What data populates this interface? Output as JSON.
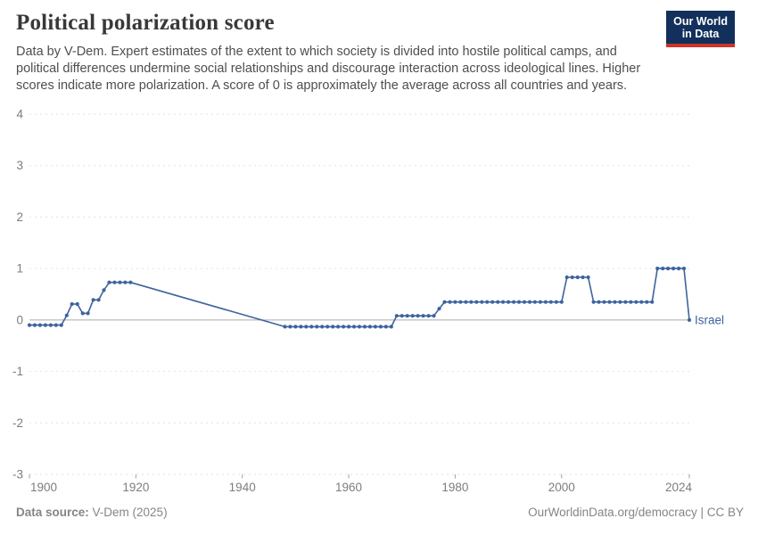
{
  "header": {
    "title": "Political polarization score",
    "subtitle_lines": [
      "Data by V-Dem. Expert estimates of the extent to which society is divided into hostile political camps, and",
      "political differences undermine social relationships and discourage interaction across ideological lines. Higher",
      "scores indicate more polarization. A score of 0 is approximately the average across all countries and years."
    ],
    "logo": {
      "line1": "Our World",
      "line2": "in Data",
      "bg_color": "#12305b",
      "accent_color": "#cb3529"
    }
  },
  "chart_data": {
    "type": "line",
    "title": "Political polarization score",
    "xlabel": "",
    "ylabel": "",
    "xlim": [
      1900,
      2024
    ],
    "ylim": [
      -3,
      4
    ],
    "x_ticks": [
      1900,
      1920,
      1940,
      1960,
      1980,
      2000,
      2024
    ],
    "y_ticks": [
      4,
      3,
      2,
      1,
      0,
      -1,
      -2,
      -3
    ],
    "grid": "dashed horizontal, solid zero line",
    "legend_position": "end-of-line label",
    "note": "No observations between 1920 and 1947; straight interpolated segment without markers",
    "series": [
      {
        "name": "Israel",
        "color": "#3d639e",
        "points": [
          [
            1900,
            -0.1
          ],
          [
            1901,
            -0.1
          ],
          [
            1902,
            -0.1
          ],
          [
            1903,
            -0.1
          ],
          [
            1904,
            -0.1
          ],
          [
            1905,
            -0.1
          ],
          [
            1906,
            -0.1
          ],
          [
            1907,
            0.09
          ],
          [
            1908,
            0.31
          ],
          [
            1909,
            0.31
          ],
          [
            1910,
            0.13
          ],
          [
            1911,
            0.13
          ],
          [
            1912,
            0.39
          ],
          [
            1913,
            0.39
          ],
          [
            1914,
            0.58
          ],
          [
            1915,
            0.73
          ],
          [
            1916,
            0.73
          ],
          [
            1917,
            0.73
          ],
          [
            1918,
            0.73
          ],
          [
            1919,
            0.73
          ],
          [
            1948,
            -0.13
          ],
          [
            1949,
            -0.13
          ],
          [
            1950,
            -0.13
          ],
          [
            1951,
            -0.13
          ],
          [
            1952,
            -0.13
          ],
          [
            1953,
            -0.13
          ],
          [
            1954,
            -0.13
          ],
          [
            1955,
            -0.13
          ],
          [
            1956,
            -0.13
          ],
          [
            1957,
            -0.13
          ],
          [
            1958,
            -0.13
          ],
          [
            1959,
            -0.13
          ],
          [
            1960,
            -0.13
          ],
          [
            1961,
            -0.13
          ],
          [
            1962,
            -0.13
          ],
          [
            1963,
            -0.13
          ],
          [
            1964,
            -0.13
          ],
          [
            1965,
            -0.13
          ],
          [
            1966,
            -0.13
          ],
          [
            1967,
            -0.13
          ],
          [
            1968,
            -0.13
          ],
          [
            1969,
            0.08
          ],
          [
            1970,
            0.08
          ],
          [
            1971,
            0.08
          ],
          [
            1972,
            0.08
          ],
          [
            1973,
            0.08
          ],
          [
            1974,
            0.08
          ],
          [
            1975,
            0.08
          ],
          [
            1976,
            0.08
          ],
          [
            1977,
            0.22
          ],
          [
            1978,
            0.35
          ],
          [
            1979,
            0.35
          ],
          [
            1980,
            0.35
          ],
          [
            1981,
            0.35
          ],
          [
            1982,
            0.35
          ],
          [
            1983,
            0.35
          ],
          [
            1984,
            0.35
          ],
          [
            1985,
            0.35
          ],
          [
            1986,
            0.35
          ],
          [
            1987,
            0.35
          ],
          [
            1988,
            0.35
          ],
          [
            1989,
            0.35
          ],
          [
            1990,
            0.35
          ],
          [
            1991,
            0.35
          ],
          [
            1992,
            0.35
          ],
          [
            1993,
            0.35
          ],
          [
            1994,
            0.35
          ],
          [
            1995,
            0.35
          ],
          [
            1996,
            0.35
          ],
          [
            1997,
            0.35
          ],
          [
            1998,
            0.35
          ],
          [
            1999,
            0.35
          ],
          [
            2000,
            0.35
          ],
          [
            2001,
            0.83
          ],
          [
            2002,
            0.83
          ],
          [
            2003,
            0.83
          ],
          [
            2004,
            0.83
          ],
          [
            2005,
            0.83
          ],
          [
            2006,
            0.35
          ],
          [
            2007,
            0.35
          ],
          [
            2008,
            0.35
          ],
          [
            2009,
            0.35
          ],
          [
            2010,
            0.35
          ],
          [
            2011,
            0.35
          ],
          [
            2012,
            0.35
          ],
          [
            2013,
            0.35
          ],
          [
            2014,
            0.35
          ],
          [
            2015,
            0.35
          ],
          [
            2016,
            0.35
          ],
          [
            2017,
            0.35
          ],
          [
            2018,
            1.0
          ],
          [
            2019,
            1.0
          ],
          [
            2020,
            1.0
          ],
          [
            2021,
            1.0
          ],
          [
            2022,
            1.0
          ],
          [
            2023,
            1.0
          ],
          [
            2024,
            0.0
          ]
        ]
      }
    ],
    "style": {
      "gridline_color": "#e2e2e2",
      "zero_line_color": "#ababab",
      "axis_label_color": "#7d7d7d",
      "tick_color": "#a0a0a0"
    }
  },
  "footer": {
    "source_label": "Data source:",
    "source_value": " V-Dem (2025)",
    "credit": "OurWorldinData.org/democracy | CC BY"
  }
}
